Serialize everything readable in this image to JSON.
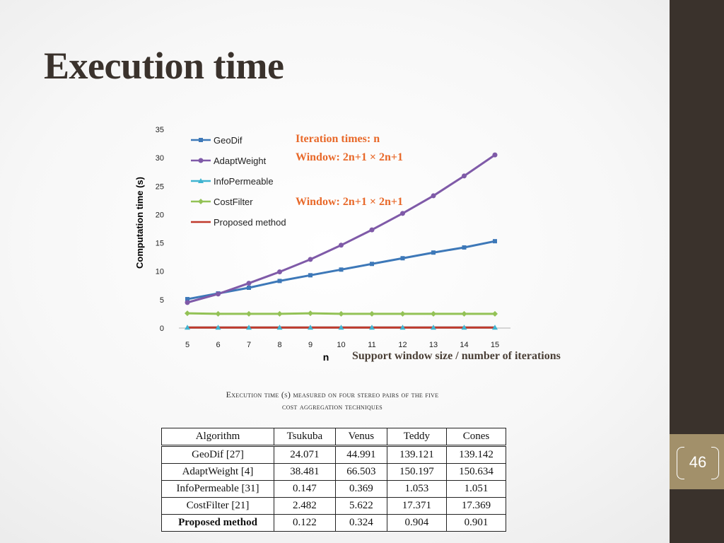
{
  "slide": {
    "title": "Execution time",
    "page_number": "46"
  },
  "colors": {
    "sidebar": "#3a322c",
    "accent": "#a2906a",
    "annotation": "#e8692a"
  },
  "annotations": {
    "iteration": "Iteration times: n",
    "window1": "Window: 2n+1 × 2n+1",
    "window2": "Window: 2n+1 × 2n+1",
    "xaxis_desc": "Support window size / number of iterations"
  },
  "chart_data": {
    "type": "line",
    "xlabel": "n",
    "ylabel": "Computation time (s)",
    "x": [
      5,
      6,
      7,
      8,
      9,
      10,
      11,
      12,
      13,
      14,
      15
    ],
    "xticks": [
      "5",
      "6",
      "7",
      "8",
      "9",
      "10",
      "11",
      "12",
      "13",
      "14",
      "15"
    ],
    "yticks": [
      "0",
      "5",
      "10",
      "15",
      "20",
      "25",
      "30",
      "35"
    ],
    "ylim": [
      0,
      35
    ],
    "legend_position": "top-left",
    "grid": false,
    "series": [
      {
        "name": "GeoDif",
        "color": "#3d78b8",
        "marker": "square",
        "values": [
          5.1,
          6.1,
          7.1,
          8.3,
          9.3,
          10.3,
          11.3,
          12.3,
          13.3,
          14.2,
          15.3
        ]
      },
      {
        "name": "AdaptWeight",
        "color": "#7f5aa8",
        "marker": "circle",
        "values": [
          4.5,
          6.0,
          7.9,
          9.9,
          12.1,
          14.6,
          17.3,
          20.2,
          23.3,
          26.8,
          30.5
        ]
      },
      {
        "name": "InfoPermeable",
        "color": "#3fb4d1",
        "marker": "triangle",
        "values": [
          0.1,
          0.1,
          0.1,
          0.1,
          0.1,
          0.1,
          0.1,
          0.1,
          0.1,
          0.1,
          0.1
        ]
      },
      {
        "name": "CostFilter",
        "color": "#93c256",
        "marker": "diamond",
        "values": [
          2.6,
          2.5,
          2.5,
          2.5,
          2.6,
          2.5,
          2.5,
          2.5,
          2.5,
          2.5,
          2.5
        ]
      },
      {
        "name": "Proposed method",
        "color": "#c0392b",
        "marker": "none",
        "values": [
          0.1,
          0.1,
          0.1,
          0.1,
          0.1,
          0.1,
          0.1,
          0.1,
          0.1,
          0.1,
          0.1
        ]
      }
    ]
  },
  "table": {
    "caption_line1": "Execution time (s) measured on four stereo pairs of the five",
    "caption_line2": "cost aggregation techniques",
    "headers": [
      "Algorithm",
      "Tsukuba",
      "Venus",
      "Teddy",
      "Cones"
    ],
    "rows": [
      [
        "GeoDif [27]",
        "24.071",
        "44.991",
        "139.121",
        "139.142"
      ],
      [
        "AdaptWeight [4]",
        "38.481",
        "66.503",
        "150.197",
        "150.634"
      ],
      [
        "InfoPermeable [31]",
        "0.147",
        "0.369",
        "1.053",
        "1.051"
      ],
      [
        "CostFilter [21]",
        "2.482",
        "5.622",
        "17.371",
        "17.369"
      ],
      [
        "Proposed method",
        "0.122",
        "0.324",
        "0.904",
        "0.901"
      ]
    ]
  }
}
